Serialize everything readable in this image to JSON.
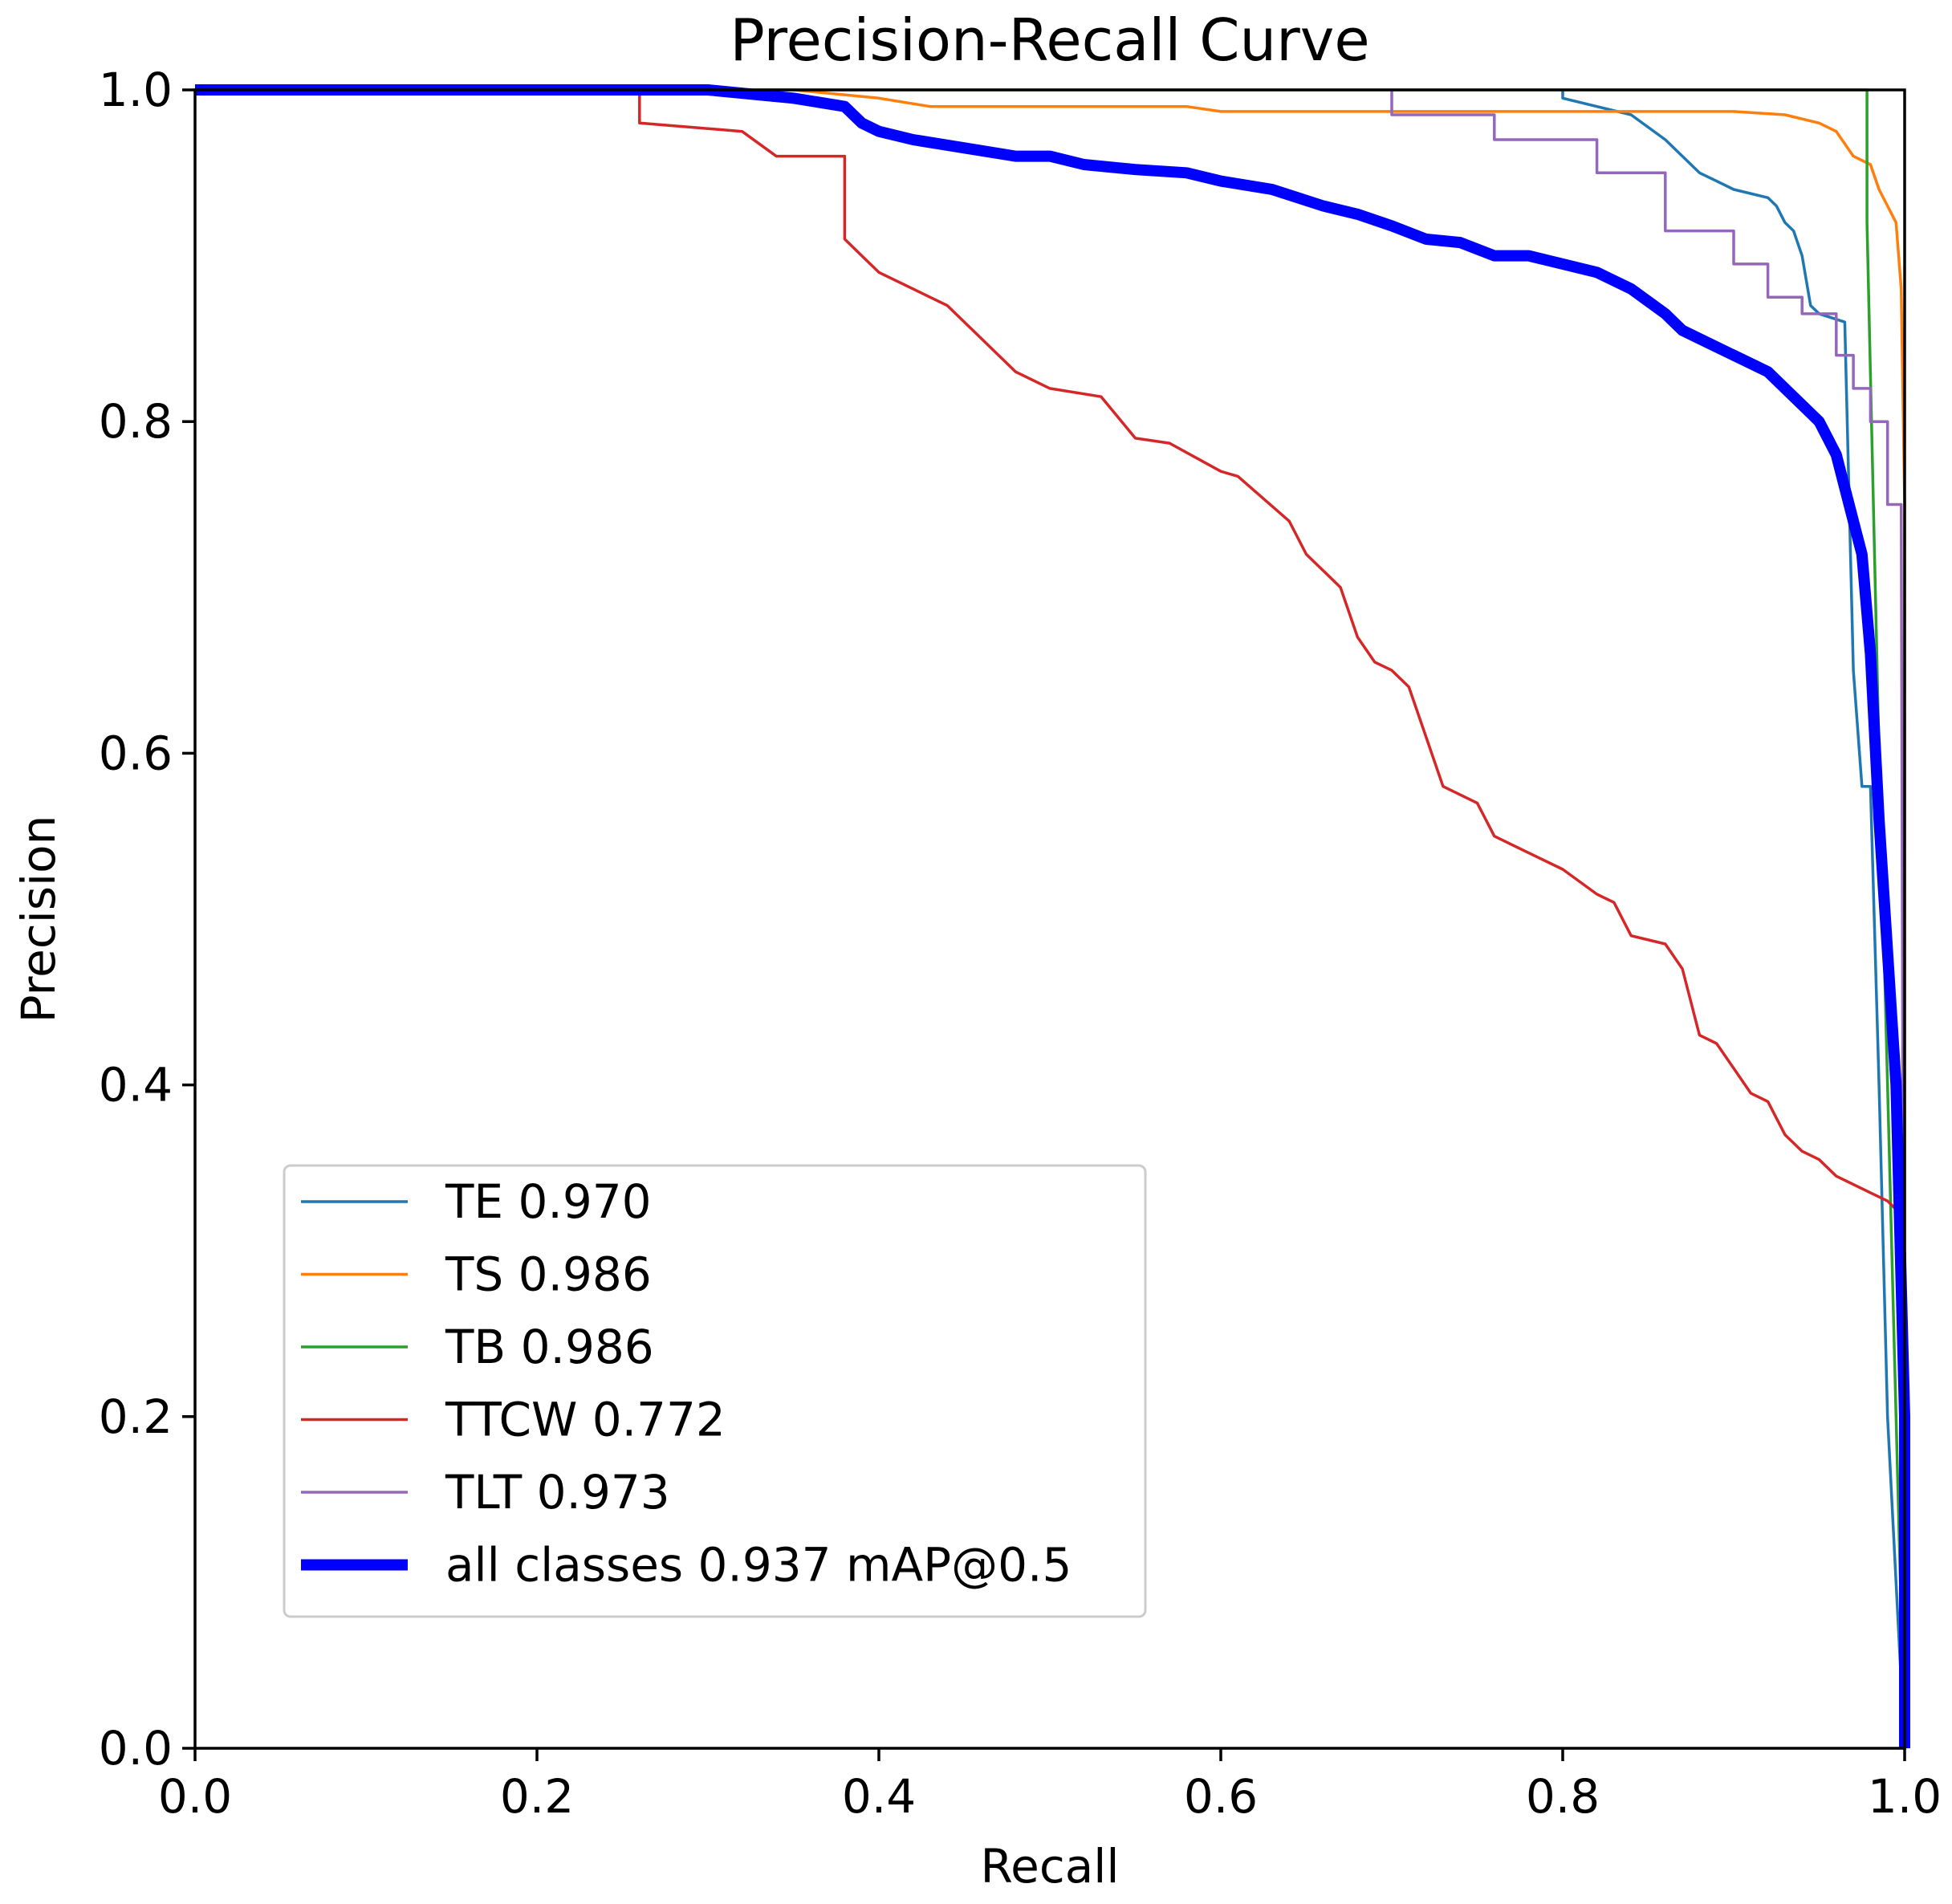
{
  "chart_data": {
    "type": "line",
    "title": "Precision-Recall Curve",
    "xlabel": "Recall",
    "ylabel": "Precision",
    "xlim": [
      0,
      1
    ],
    "ylim": [
      0,
      1
    ],
    "xticks": [
      "0.0",
      "0.2",
      "0.4",
      "0.6",
      "0.8",
      "1.0"
    ],
    "yticks": [
      "0.0",
      "0.2",
      "0.4",
      "0.6",
      "0.8",
      "1.0"
    ],
    "grid": false,
    "legend_position": "lower-left",
    "series": [
      {
        "name": "TE 0.970",
        "color": "#1f77b4",
        "width": "thin",
        "x": [
          0.8,
          0.8,
          0.82,
          0.84,
          0.86,
          0.87,
          0.88,
          0.89,
          0.9,
          0.92,
          0.925,
          0.93,
          0.935,
          0.94,
          0.945,
          0.95,
          0.965,
          0.97,
          0.975,
          0.98,
          0.985,
          0.99,
          0.995,
          1.0
        ],
        "y": [
          1.0,
          0.995,
          0.99,
          0.985,
          0.97,
          0.96,
          0.95,
          0.945,
          0.94,
          0.935,
          0.93,
          0.92,
          0.915,
          0.9,
          0.87,
          0.865,
          0.86,
          0.65,
          0.58,
          0.58,
          0.4,
          0.2,
          0.1,
          0.0
        ]
      },
      {
        "name": "TS 0.986",
        "color": "#ff7f0e",
        "width": "thin",
        "x": [
          0.0,
          0.35,
          0.4,
          0.43,
          0.58,
          0.6,
          0.9,
          0.93,
          0.95,
          0.96,
          0.97,
          0.98,
          0.985,
          0.99,
          0.995,
          0.998,
          1.0,
          1.0
        ],
        "y": [
          1.0,
          1.0,
          0.995,
          0.99,
          0.99,
          0.987,
          0.987,
          0.985,
          0.98,
          0.975,
          0.96,
          0.955,
          0.94,
          0.93,
          0.92,
          0.88,
          0.75,
          0.0
        ]
      },
      {
        "name": "TB 0.986",
        "color": "#2ca02c",
        "width": "thin",
        "x": [
          0.0,
          0.978,
          0.978,
          0.985,
          0.99,
          0.995,
          1.0
        ],
        "y": [
          1.0,
          1.0,
          0.92,
          0.6,
          0.4,
          0.2,
          0.0
        ]
      },
      {
        "name": "TTCW 0.772",
        "color": "#d62728",
        "width": "thin",
        "x": [
          0.0,
          0.26,
          0.26,
          0.32,
          0.34,
          0.38,
          0.38,
          0.39,
          0.4,
          0.42,
          0.43,
          0.44,
          0.46,
          0.48,
          0.5,
          0.53,
          0.55,
          0.57,
          0.6,
          0.61,
          0.64,
          0.65,
          0.66,
          0.67,
          0.68,
          0.69,
          0.7,
          0.71,
          0.72,
          0.73,
          0.74,
          0.75,
          0.76,
          0.78,
          0.8,
          0.82,
          0.83,
          0.84,
          0.86,
          0.87,
          0.88,
          0.89,
          0.9,
          0.91,
          0.92,
          0.93,
          0.94,
          0.95,
          0.96,
          0.97,
          0.98,
          0.99,
          1.0
        ],
        "y": [
          1.0,
          0.998,
          0.98,
          0.975,
          0.96,
          0.96,
          0.91,
          0.9,
          0.89,
          0.88,
          0.875,
          0.87,
          0.85,
          0.83,
          0.82,
          0.815,
          0.79,
          0.787,
          0.77,
          0.767,
          0.74,
          0.72,
          0.71,
          0.7,
          0.67,
          0.655,
          0.65,
          0.64,
          0.61,
          0.58,
          0.575,
          0.57,
          0.55,
          0.54,
          0.53,
          0.515,
          0.51,
          0.49,
          0.485,
          0.47,
          0.43,
          0.425,
          0.41,
          0.395,
          0.39,
          0.37,
          0.36,
          0.355,
          0.345,
          0.34,
          0.335,
          0.33,
          0.32
        ]
      },
      {
        "name": "TLT 0.973",
        "color": "#9467bd",
        "width": "thin",
        "x": [
          0.7,
          0.7,
          0.76,
          0.76,
          0.82,
          0.82,
          0.86,
          0.86,
          0.9,
          0.9,
          0.92,
          0.92,
          0.94,
          0.94,
          0.96,
          0.96,
          0.97,
          0.97,
          0.98,
          0.98,
          0.99,
          0.99,
          0.998,
          1.0
        ],
        "y": [
          1.0,
          0.985,
          0.985,
          0.97,
          0.97,
          0.95,
          0.95,
          0.915,
          0.915,
          0.895,
          0.895,
          0.875,
          0.875,
          0.865,
          0.865,
          0.84,
          0.84,
          0.82,
          0.82,
          0.8,
          0.8,
          0.75,
          0.75,
          0.0
        ]
      },
      {
        "name": "all classes 0.937 mAP@0.5",
        "color": "#0000ff",
        "width": "thick",
        "x": [
          0.0,
          0.3,
          0.35,
          0.38,
          0.39,
          0.4,
          0.42,
          0.45,
          0.48,
          0.5,
          0.52,
          0.55,
          0.58,
          0.6,
          0.63,
          0.66,
          0.68,
          0.7,
          0.72,
          0.74,
          0.76,
          0.78,
          0.8,
          0.82,
          0.84,
          0.86,
          0.87,
          0.88,
          0.9,
          0.92,
          0.93,
          0.94,
          0.95,
          0.96,
          0.965,
          0.97,
          0.975,
          0.98,
          0.985,
          0.99,
          0.995,
          1.0,
          1.0
        ],
        "y": [
          1.0,
          1.0,
          0.995,
          0.99,
          0.98,
          0.975,
          0.97,
          0.965,
          0.96,
          0.96,
          0.955,
          0.952,
          0.95,
          0.945,
          0.94,
          0.93,
          0.925,
          0.918,
          0.91,
          0.908,
          0.9,
          0.9,
          0.895,
          0.89,
          0.88,
          0.865,
          0.855,
          0.85,
          0.84,
          0.83,
          0.82,
          0.81,
          0.8,
          0.78,
          0.76,
          0.74,
          0.72,
          0.66,
          0.56,
          0.48,
          0.4,
          0.2,
          0.0
        ]
      }
    ]
  }
}
